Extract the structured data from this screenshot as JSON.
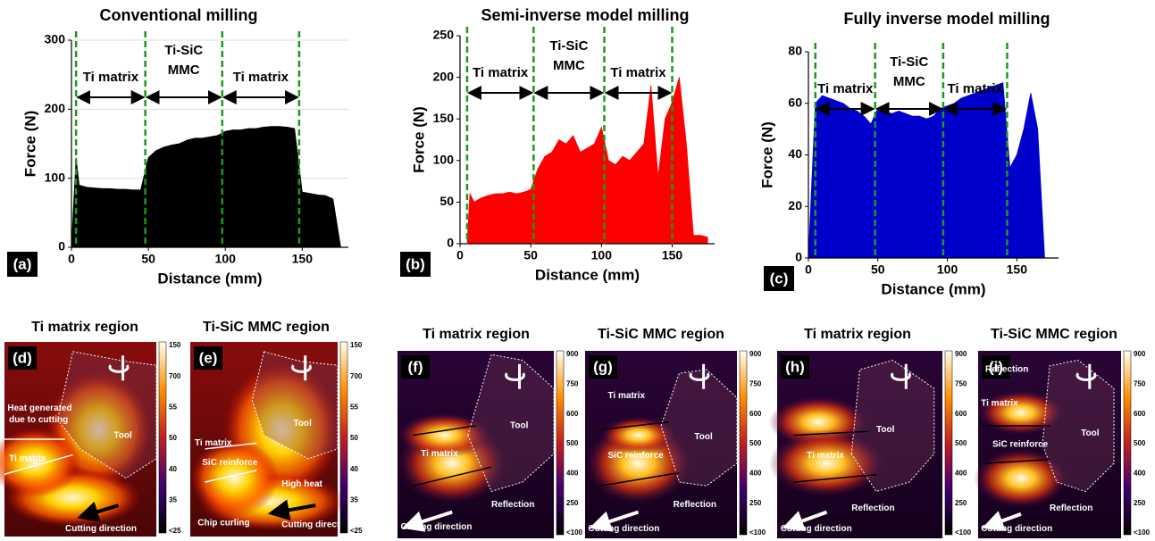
{
  "chart_data": [
    {
      "type": "area",
      "title": "Conventional milling",
      "x_label": "Distance (mm)",
      "y_label": "Force (N)",
      "panel": "(a)",
      "color": "#000000",
      "grid": true,
      "xlim": [
        0,
        180
      ],
      "xticks": [
        0,
        50,
        100,
        150
      ],
      "ylim": [
        0,
        300
      ],
      "yticks": [
        0,
        100,
        200,
        300
      ],
      "dividers": [
        3,
        48,
        98,
        148
      ],
      "regions": [
        [
          "Ti matrix"
        ],
        [
          "Ti-SiC",
          "MMC"
        ],
        [
          "Ti matrix"
        ]
      ],
      "x": [
        0,
        3,
        5,
        10,
        15,
        20,
        25,
        30,
        35,
        40,
        45,
        50,
        55,
        60,
        65,
        70,
        75,
        80,
        85,
        90,
        95,
        100,
        105,
        110,
        115,
        120,
        125,
        130,
        135,
        140,
        145,
        150,
        155,
        160,
        165,
        170,
        175
      ],
      "values": [
        0,
        130,
        90,
        87,
        86,
        85,
        85,
        84,
        84,
        83,
        83,
        130,
        140,
        145,
        148,
        150,
        155,
        158,
        158,
        160,
        162,
        168,
        170,
        170,
        172,
        172,
        174,
        175,
        175,
        174,
        172,
        80,
        78,
        76,
        75,
        70,
        0
      ]
    },
    {
      "type": "area",
      "title": "Semi-inverse model milling",
      "x_label": "Distance (mm)",
      "y_label": "Force (N)",
      "panel": "(b)",
      "color": "#ff0000",
      "grid": false,
      "xlim": [
        0,
        180
      ],
      "xticks": [
        0,
        50,
        100,
        150
      ],
      "ylim": [
        0,
        250
      ],
      "yticks": [
        0,
        50,
        100,
        150,
        200,
        250
      ],
      "dividers": [
        5,
        52,
        102,
        150
      ],
      "regions": [
        [
          "Ti matrix"
        ],
        [
          "Ti-SiC",
          "MMC"
        ],
        [
          "Ti matrix"
        ]
      ],
      "x": [
        0,
        5,
        7,
        10,
        15,
        20,
        25,
        30,
        35,
        40,
        45,
        50,
        55,
        60,
        65,
        70,
        75,
        80,
        85,
        90,
        95,
        100,
        105,
        110,
        115,
        120,
        125,
        130,
        135,
        140,
        145,
        150,
        155,
        160,
        165,
        170,
        175
      ],
      "values": [
        0,
        0,
        60,
        50,
        55,
        58,
        60,
        60,
        62,
        60,
        62,
        65,
        90,
        105,
        110,
        125,
        120,
        130,
        110,
        115,
        120,
        140,
        100,
        95,
        105,
        100,
        110,
        120,
        190,
        80,
        150,
        170,
        200,
        120,
        10,
        10,
        8
      ]
    },
    {
      "type": "area",
      "title": "Fully inverse model milling",
      "x_label": "Distance (mm)",
      "y_label": "Force (N)",
      "panel": "(c)",
      "color": "#0000cc",
      "grid": false,
      "xlim": [
        0,
        180
      ],
      "xticks": [
        0,
        50,
        100,
        150
      ],
      "ylim": [
        0,
        80
      ],
      "yticks": [
        0,
        20,
        40,
        60,
        80
      ],
      "dividers": [
        5,
        48,
        97,
        143
      ],
      "regions": [
        [
          "Ti matrix"
        ],
        [
          "Ti-SiC",
          "MMC"
        ],
        [
          "Ti matrix"
        ]
      ],
      "x": [
        0,
        5,
        10,
        15,
        20,
        25,
        30,
        35,
        40,
        45,
        50,
        55,
        60,
        65,
        70,
        75,
        80,
        85,
        90,
        95,
        100,
        105,
        110,
        115,
        120,
        125,
        130,
        135,
        140,
        145,
        150,
        155,
        160,
        165,
        170
      ],
      "values": [
        0,
        60,
        63,
        62,
        61,
        60,
        58,
        57,
        55,
        52,
        58,
        57,
        56,
        57,
        56,
        55,
        55,
        54,
        55,
        58,
        59,
        60,
        62,
        63,
        64,
        65,
        66,
        67,
        68,
        35,
        40,
        50,
        64,
        50,
        0
      ]
    }
  ],
  "thermal_panels": [
    {
      "title": "Ti matrix region",
      "letter": "(d)",
      "colorbar": [
        "150",
        "700",
        "55",
        "50",
        "40",
        "35",
        "<25"
      ],
      "labels": [
        "Heat generated",
        "due to cutting",
        "Tool",
        "Ti matrix",
        "Cutting direction"
      ]
    },
    {
      "title": "Ti-SiC MMC region",
      "letter": "(e)",
      "colorbar": [
        "150",
        "700",
        "55",
        "50",
        "40",
        "35",
        "<25"
      ],
      "labels": [
        "Tool",
        "Ti matrix",
        "SiC reinforce",
        "High heat",
        "Chip curling",
        "Cutting direction"
      ]
    },
    {
      "title": "Ti matrix region",
      "letter": "(f)",
      "colorbar": [
        "900",
        "750",
        "600",
        "500",
        "400",
        "250",
        "<100"
      ],
      "labels": [
        "Tool",
        "Ti matrix",
        "Reflection",
        "Cutting direction"
      ]
    },
    {
      "title": "Ti-SiC MMC region",
      "letter": "(g)",
      "colorbar": [
        "900",
        "750",
        "600",
        "500",
        "400",
        "250",
        "<100"
      ],
      "labels": [
        "Ti matrix",
        "SiC reinforce",
        "Tool",
        "Reflection",
        "Cutting direction"
      ]
    },
    {
      "title": "Ti matrix region",
      "letter": "(h)",
      "colorbar": [
        "900",
        "750",
        "600",
        "500",
        "400",
        "250",
        "<100"
      ],
      "labels": [
        "Tool",
        "Ti matrix",
        "Reflection",
        "Cutting direction"
      ]
    },
    {
      "title": "Ti-SiC MMC region",
      "letter": "(i)",
      "colorbar": [
        "900",
        "750",
        "600",
        "500",
        "400",
        "250",
        "<100"
      ],
      "labels": [
        "Reflection",
        "Ti matrix",
        "SiC reinforce",
        "Tool",
        "Reflection",
        "Cutting direction"
      ]
    }
  ]
}
